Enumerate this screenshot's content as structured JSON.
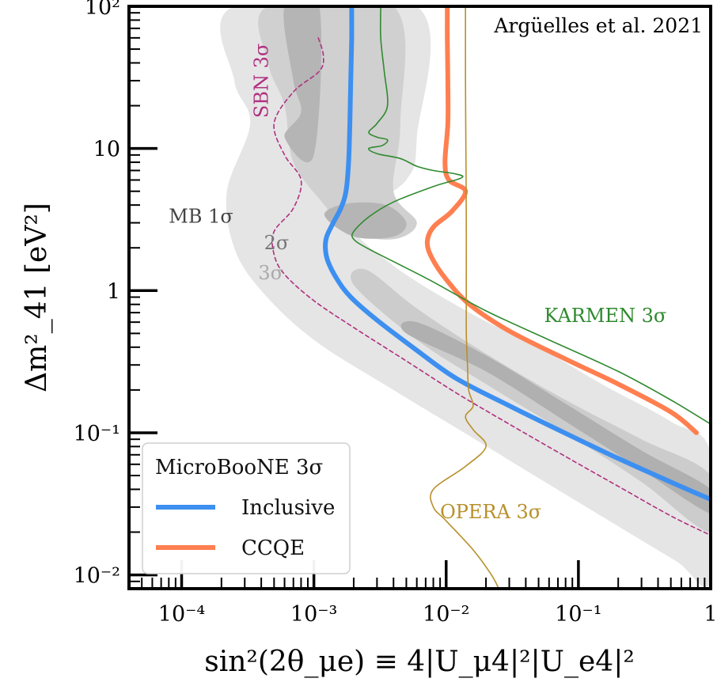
{
  "chart_data": {
    "type": "line",
    "title": "",
    "credit": "Argüelles et al. 2021",
    "xlabel": "sin²(2θ_μe) ≡ 4|U_μ4|²|U_e4|²",
    "ylabel": "Δm²_41 [eV²]",
    "xscale": "log",
    "yscale": "log",
    "xlim": [
      4e-05,
      1
    ],
    "ylim": [
      0.008,
      100
    ],
    "x_ticks": [
      {
        "value": 0.0001,
        "label": "10⁻⁴"
      },
      {
        "value": 0.001,
        "label": "10⁻³"
      },
      {
        "value": 0.01,
        "label": "10⁻²"
      },
      {
        "value": 0.1,
        "label": "10⁻¹"
      },
      {
        "value": 1,
        "label": "1"
      }
    ],
    "y_ticks": [
      {
        "value": 0.01,
        "label": "10⁻²"
      },
      {
        "value": 0.1,
        "label": "10⁻¹"
      },
      {
        "value": 1,
        "label": "1"
      },
      {
        "value": 10,
        "label": "10"
      },
      {
        "value": 100,
        "label": "10²"
      }
    ],
    "series": [
      {
        "name": "Inclusive",
        "group": "MicroBooNE 3σ",
        "color": "#3d8ff0",
        "style": "solid-thick",
        "points": [
          [
            0.00193,
            100
          ],
          [
            0.00193,
            60
          ],
          [
            0.0019,
            30
          ],
          [
            0.00187,
            15
          ],
          [
            0.00183,
            8
          ],
          [
            0.00175,
            5
          ],
          [
            0.0016,
            3.8
          ],
          [
            0.0014,
            3.0
          ],
          [
            0.00125,
            2.4
          ],
          [
            0.00122,
            2.0
          ],
          [
            0.00128,
            1.6
          ],
          [
            0.0015,
            1.2
          ],
          [
            0.0019,
            0.9
          ],
          [
            0.003,
            0.62
          ],
          [
            0.006,
            0.38
          ],
          [
            0.012,
            0.24
          ],
          [
            0.03,
            0.155
          ],
          [
            0.08,
            0.099
          ],
          [
            0.2,
            0.066
          ],
          [
            0.5,
            0.045
          ],
          [
            1.0,
            0.034
          ]
        ]
      },
      {
        "name": "CCQE",
        "group": "MicroBooNE 3σ",
        "color": "#ff7f50",
        "style": "solid-thick",
        "points": [
          [
            0.0102,
            100
          ],
          [
            0.0102,
            60
          ],
          [
            0.0103,
            30
          ],
          [
            0.0103,
            15
          ],
          [
            0.0098,
            8
          ],
          [
            0.0105,
            6
          ],
          [
            0.014,
            5
          ],
          [
            0.011,
            3.6
          ],
          [
            0.008,
            2.8
          ],
          [
            0.0072,
            2.2
          ],
          [
            0.0078,
            1.7
          ],
          [
            0.01,
            1.2
          ],
          [
            0.015,
            0.8
          ],
          [
            0.03,
            0.52
          ],
          [
            0.08,
            0.33
          ],
          [
            0.2,
            0.22
          ],
          [
            0.5,
            0.14
          ],
          [
            0.78,
            0.1
          ]
        ]
      },
      {
        "name": "KARMEN 3σ",
        "color": "#2f8a2f",
        "style": "solid-thin",
        "points": [
          [
            0.0032,
            100
          ],
          [
            0.0032,
            60
          ],
          [
            0.0034,
            35
          ],
          [
            0.0036,
            20
          ],
          [
            0.003,
            15
          ],
          [
            0.0026,
            13
          ],
          [
            0.003,
            12
          ],
          [
            0.0036,
            11.5
          ],
          [
            0.0033,
            10.5
          ],
          [
            0.0026,
            10
          ],
          [
            0.003,
            9.2
          ],
          [
            0.0045,
            8.5
          ],
          [
            0.006,
            7.5
          ],
          [
            0.008,
            7
          ],
          [
            0.012,
            6.6
          ],
          [
            0.013,
            6.2
          ],
          [
            0.008,
            5.4
          ],
          [
            0.004,
            4.2
          ],
          [
            0.0026,
            3.3
          ],
          [
            0.002,
            2.6
          ],
          [
            0.002,
            2.3
          ],
          [
            0.0025,
            2.0
          ],
          [
            0.004,
            1.6
          ],
          [
            0.008,
            1.15
          ],
          [
            0.02,
            0.72
          ],
          [
            0.06,
            0.45
          ],
          [
            0.2,
            0.27
          ],
          [
            0.5,
            0.17
          ],
          [
            1.0,
            0.115
          ]
        ]
      },
      {
        "name": "OPERA 3σ",
        "color": "#b8902a",
        "style": "solid-thin",
        "points": [
          [
            0.014,
            100
          ],
          [
            0.014,
            30
          ],
          [
            0.0141,
            10
          ],
          [
            0.0142,
            3
          ],
          [
            0.0142,
            1
          ],
          [
            0.0142,
            0.5
          ],
          [
            0.0145,
            0.3
          ],
          [
            0.0148,
            0.2
          ],
          [
            0.016,
            0.155
          ],
          [
            0.014,
            0.13
          ],
          [
            0.016,
            0.105
          ],
          [
            0.02,
            0.08
          ],
          [
            0.014,
            0.058
          ],
          [
            0.008,
            0.04
          ],
          [
            0.008,
            0.03
          ],
          [
            0.01,
            0.024
          ],
          [
            0.016,
            0.015
          ],
          [
            0.022,
            0.01
          ],
          [
            0.025,
            0.008
          ]
        ]
      },
      {
        "name": "SBN 3σ",
        "color": "#b03080",
        "style": "dashed",
        "points": [
          [
            0.00108,
            60
          ],
          [
            0.00118,
            45
          ],
          [
            0.0011,
            35
          ],
          [
            0.0007,
            25
          ],
          [
            0.0005,
            15
          ],
          [
            0.0006,
            9
          ],
          [
            0.0008,
            6
          ],
          [
            0.0007,
            3.8
          ],
          [
            0.0005,
            2.6
          ],
          [
            0.0005,
            1.8
          ],
          [
            0.0006,
            1.3
          ],
          [
            0.001,
            0.85
          ],
          [
            0.002,
            0.55
          ],
          [
            0.005,
            0.32
          ],
          [
            0.012,
            0.19
          ],
          [
            0.03,
            0.115
          ],
          [
            0.08,
            0.068
          ],
          [
            0.2,
            0.042
          ],
          [
            0.5,
            0.026
          ],
          [
            1.0,
            0.019
          ]
        ]
      }
    ],
    "regions": [
      {
        "name": "MB 3σ",
        "color": "#e5e5e5",
        "outline": [
          [
            0.00025,
            100
          ],
          [
            0.00025,
            30
          ],
          [
            0.00033,
            15
          ],
          [
            0.00022,
            5
          ],
          [
            0.00025,
            2
          ],
          [
            0.0004,
            1
          ],
          [
            0.001,
            0.45
          ],
          [
            0.004,
            0.2
          ],
          [
            0.015,
            0.095
          ],
          [
            0.05,
            0.048
          ],
          [
            0.2,
            0.022
          ],
          [
            0.55,
            0.0125
          ],
          [
            1.0,
            0.009
          ],
          [
            1.0,
            0.072
          ],
          [
            0.5,
            0.12
          ],
          [
            0.15,
            0.22
          ],
          [
            0.05,
            0.4
          ],
          [
            0.015,
            0.7
          ],
          [
            0.004,
            1.5
          ],
          [
            0.002,
            3
          ],
          [
            0.005,
            6
          ],
          [
            0.006,
            12
          ],
          [
            0.006,
            100
          ]
        ]
      },
      {
        "name": "MB 2σ",
        "color": "#d0d0d0",
        "outline": [
          [
            0.00045,
            100
          ],
          [
            0.00045,
            40
          ],
          [
            0.0006,
            20
          ],
          [
            0.0007,
            8
          ],
          [
            0.0012,
            4
          ],
          [
            0.0018,
            2.6
          ],
          [
            0.004,
            2.3
          ],
          [
            0.006,
            3
          ],
          [
            0.004,
            5
          ],
          [
            0.0045,
            15
          ],
          [
            0.004,
            100
          ]
        ]
      },
      {
        "name": "MB 2σ band",
        "color": "#cccccc",
        "outline": [
          [
            0.002,
            1.1
          ],
          [
            0.006,
            0.45
          ],
          [
            0.02,
            0.22
          ],
          [
            0.08,
            0.1
          ],
          [
            0.3,
            0.045
          ],
          [
            1.0,
            0.02
          ],
          [
            1.0,
            0.05
          ],
          [
            0.3,
            0.09
          ],
          [
            0.08,
            0.17
          ],
          [
            0.02,
            0.36
          ],
          [
            0.006,
            0.75
          ],
          [
            0.0025,
            1.4
          ]
        ]
      },
      {
        "name": "MB 1σ",
        "color": "#b5b5b5",
        "outline": [
          [
            0.0006,
            100
          ],
          [
            0.0007,
            30
          ],
          [
            0.0008,
            18
          ],
          [
            0.0006,
            12
          ],
          [
            0.001,
            9
          ],
          [
            0.0011,
            100
          ]
        ]
      },
      {
        "name": "MB 1σ island",
        "color": "#b5b5b5",
        "outline": [
          [
            0.0012,
            3.4
          ],
          [
            0.002,
            2.4
          ],
          [
            0.004,
            2.4
          ],
          [
            0.005,
            3.0
          ],
          [
            0.0035,
            4.0
          ],
          [
            0.0018,
            4.1
          ]
        ]
      },
      {
        "name": "MB 1σ band",
        "color": "#b0b0b0",
        "outline": [
          [
            0.005,
            0.5
          ],
          [
            0.02,
            0.27
          ],
          [
            0.08,
            0.12
          ],
          [
            0.3,
            0.055
          ],
          [
            1.0,
            0.027
          ],
          [
            1.0,
            0.04
          ],
          [
            0.3,
            0.075
          ],
          [
            0.08,
            0.16
          ],
          [
            0.02,
            0.35
          ],
          [
            0.006,
            0.6
          ]
        ]
      }
    ],
    "annotations": [
      {
        "text": "SBN 3σ",
        "x": 0.00045,
        "y": 30,
        "color": "#b03080",
        "rotate": -90
      },
      {
        "text": "MB 1σ",
        "x": 8e-05,
        "y": 3.0,
        "color": "#444444"
      },
      {
        "text": "2σ",
        "x": 0.00042,
        "y": 1.95,
        "color": "#777777"
      },
      {
        "text": "3σ",
        "x": 0.00038,
        "y": 1.2,
        "color": "#aaaaaa"
      },
      {
        "text": "KARMEN 3σ",
        "x": 0.055,
        "y": 0.6,
        "color": "#2f8a2f"
      },
      {
        "text": "OPERA 3σ",
        "x": 0.009,
        "y": 0.025,
        "color": "#b8902a"
      }
    ],
    "legend": {
      "placement": "bottom-left",
      "title": "MicroBooNE 3σ",
      "entries": [
        {
          "label": "Inclusive",
          "color": "#3d8ff0"
        },
        {
          "label": "CCQE",
          "color": "#ff7f50"
        }
      ]
    }
  }
}
